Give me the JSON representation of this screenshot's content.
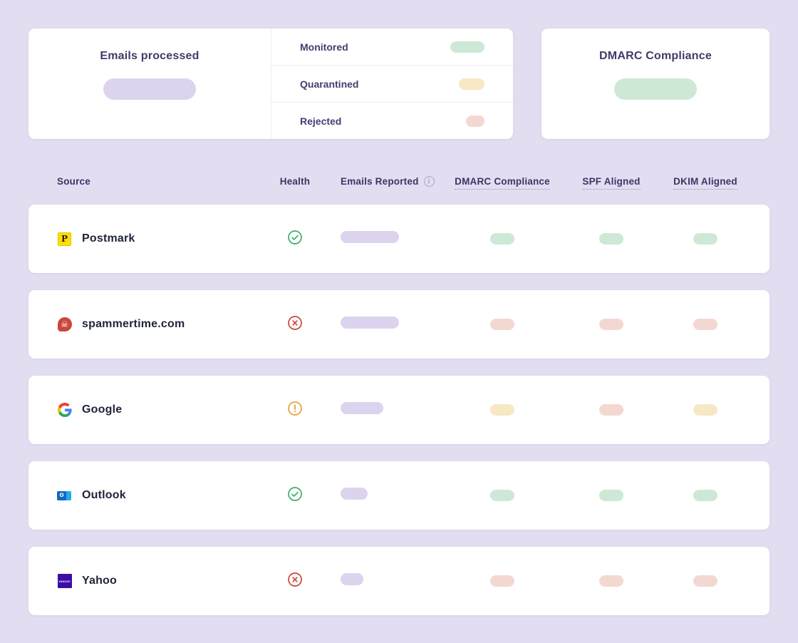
{
  "summary": {
    "emails_processed_card": {
      "title": "Emails processed",
      "value_placeholder_color": "#DCD4EE"
    },
    "breakdown_list": [
      {
        "label": "Monitored",
        "pill_color": "#CDE9D5",
        "pill_width": 48
      },
      {
        "label": "Quarantined",
        "pill_color": "#F7E8C4",
        "pill_width": 36
      },
      {
        "label": "Rejected",
        "pill_color": "#F3D8D1",
        "pill_width": 26
      }
    ],
    "dmarc_card": {
      "title": "DMARC Compliance",
      "value_placeholder_color": "#CDE9D5"
    }
  },
  "table": {
    "columns": [
      {
        "label": "Source"
      },
      {
        "label": "Health"
      },
      {
        "label": "Emails Reported",
        "icon": "info-icon"
      },
      {
        "label": "DMARC Compliance",
        "underline": "dotted"
      },
      {
        "label": "SPF Aligned",
        "underline": "dotted"
      },
      {
        "label": "DKIM Aligned",
        "underline": "dotted"
      }
    ],
    "rows": [
      {
        "source": "Postmark",
        "icon": "postmark-logo-icon",
        "health": "pass",
        "emails_reported_bar_width": 82,
        "dmarc_compliance": "pass",
        "spf_aligned": "pass",
        "dkim_aligned": "pass"
      },
      {
        "source": "spammertime.com",
        "icon": "skull-logo-icon",
        "health": "fail",
        "emails_reported_bar_width": 82,
        "dmarc_compliance": "fail",
        "spf_aligned": "fail",
        "dkim_aligned": "fail"
      },
      {
        "source": "Google",
        "icon": "google-logo-icon",
        "health": "warning",
        "emails_reported_bar_width": 60,
        "dmarc_compliance": "warning",
        "spf_aligned": "fail",
        "dkim_aligned": "warning"
      },
      {
        "source": "Outlook",
        "icon": "outlook-logo-icon",
        "health": "pass",
        "emails_reported_bar_width": 38,
        "dmarc_compliance": "pass",
        "spf_aligned": "pass",
        "dkim_aligned": "pass"
      },
      {
        "source": "Yahoo",
        "icon": "yahoo-logo-icon",
        "health": "fail",
        "emails_reported_bar_width": 32,
        "dmarc_compliance": "fail",
        "spf_aligned": "fail",
        "dkim_aligned": "fail"
      }
    ]
  },
  "colors": {
    "background": "#E3DDF1",
    "card": "#FFFFFF",
    "pill_neutral": "#DCD4EE",
    "pill_pass": "#CDE9D5",
    "pill_warning": "#F7E8C4",
    "pill_fail": "#F3D8D1",
    "icon_pass": "#3BB069",
    "icon_warning": "#E2A23B",
    "icon_fail": "#C9473A",
    "heading_text": "#43396B",
    "row_text": "#20253A"
  }
}
